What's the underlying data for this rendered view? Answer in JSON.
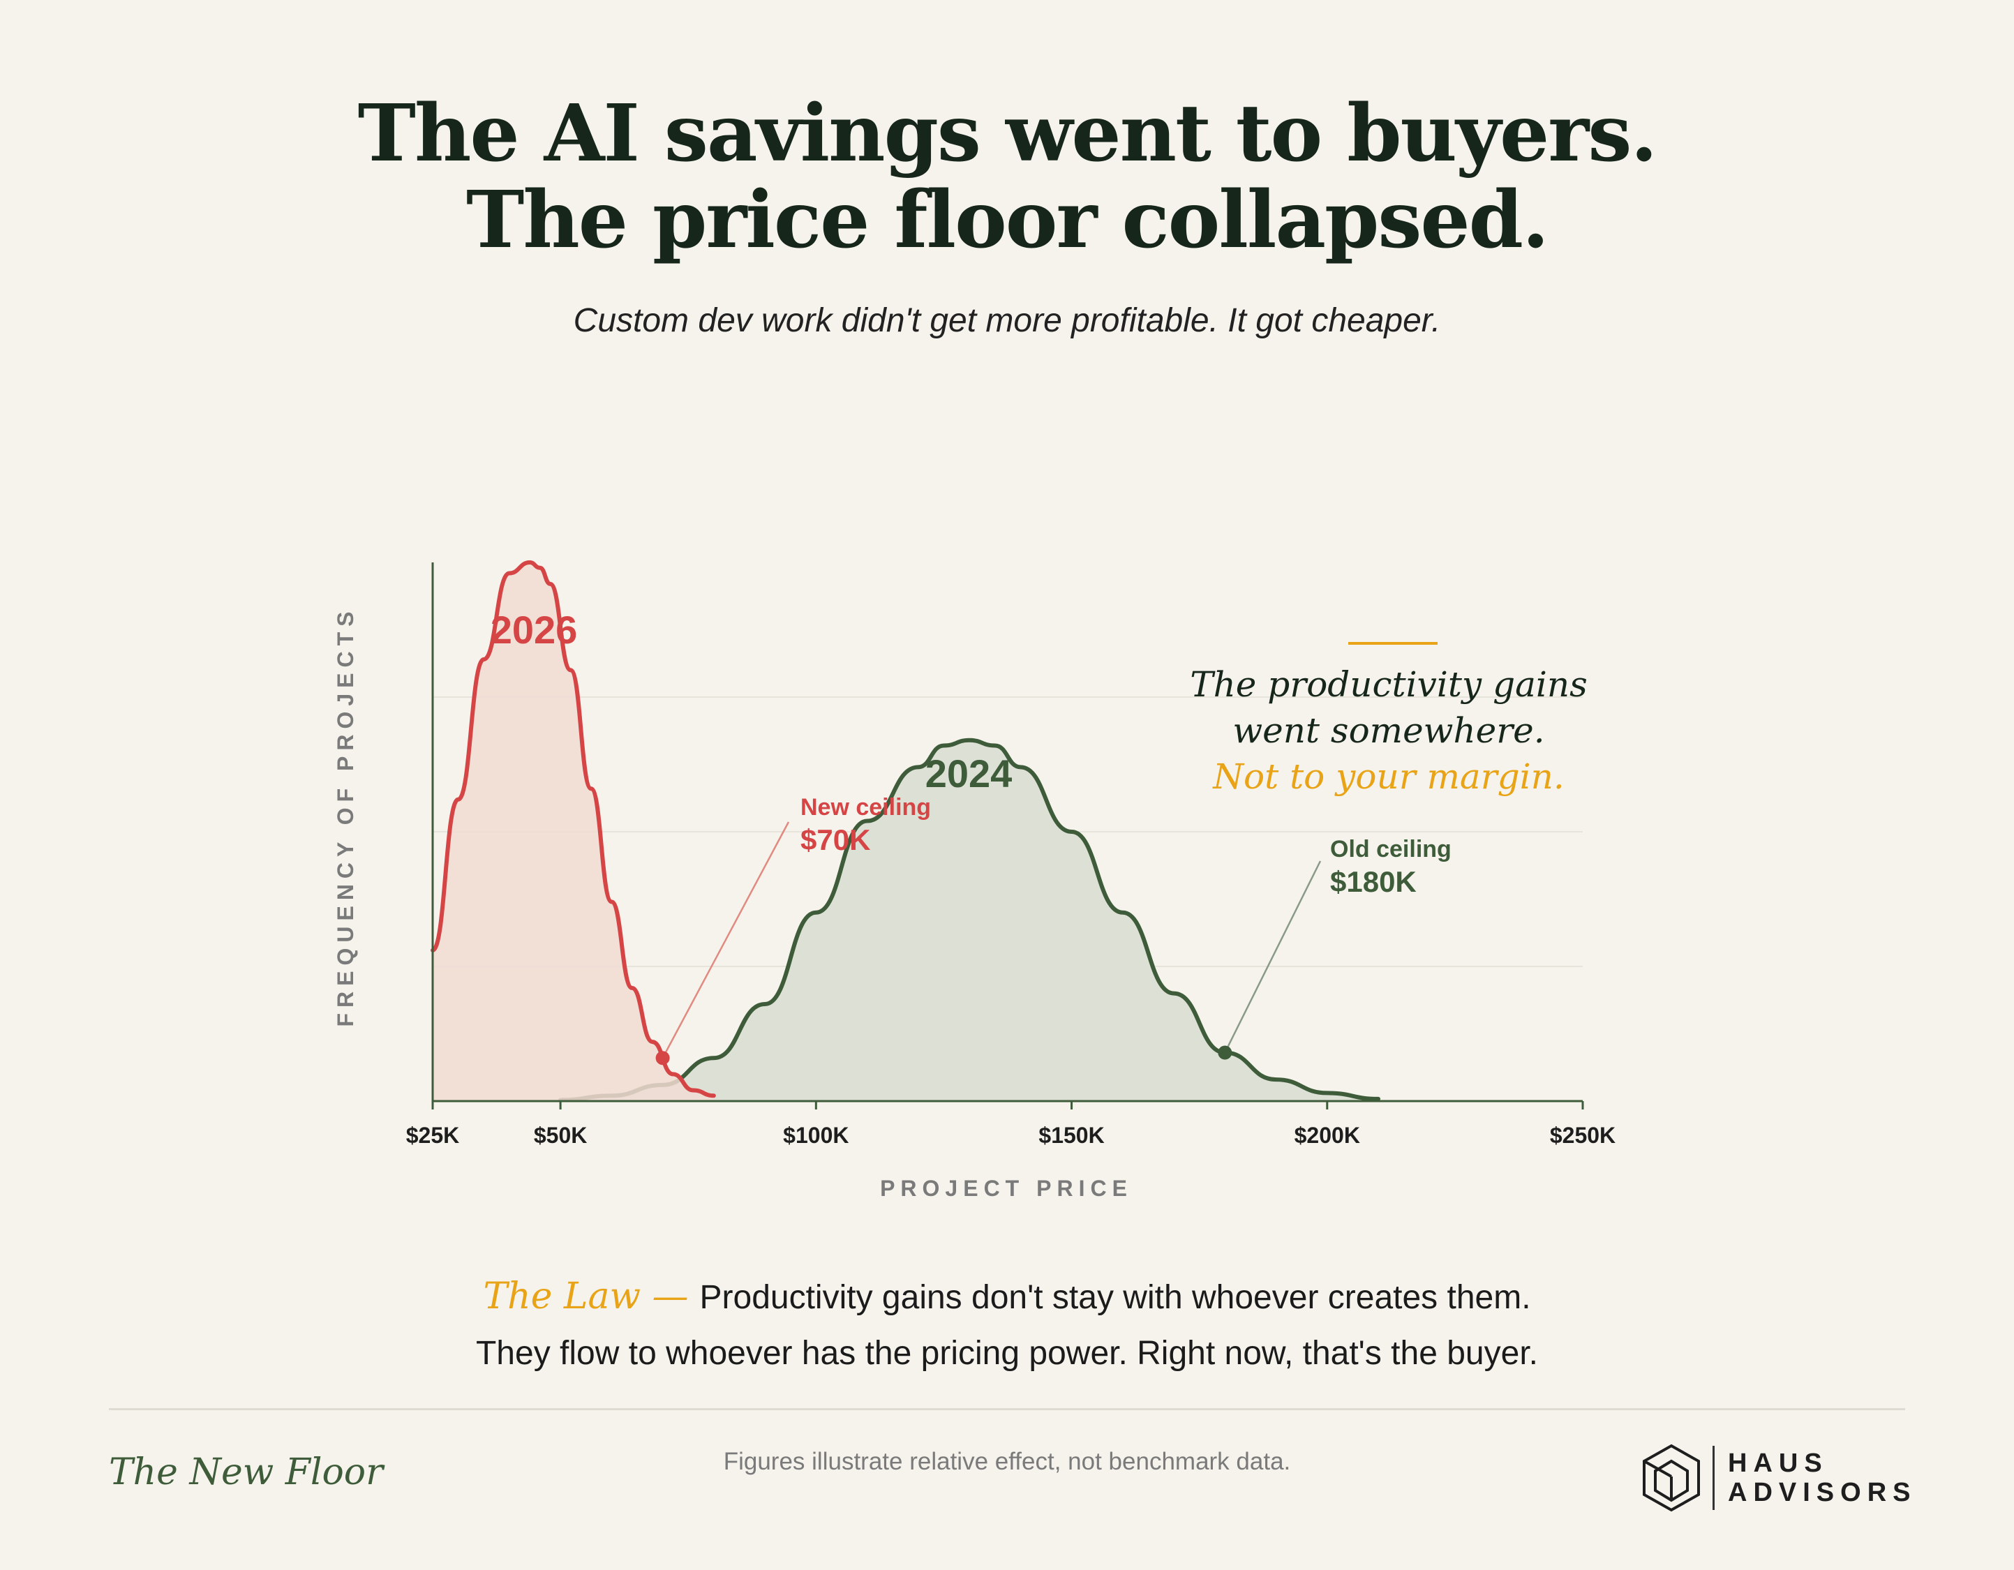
{
  "header": {
    "title_line1": "The AI savings went to buyers.",
    "title_line2": "The price floor collapsed.",
    "subtitle": "Custom dev work didn't get more profitable. It got cheaper."
  },
  "chart_data": {
    "type": "area",
    "xlabel": "PROJECT PRICE",
    "ylabel": "FREQUENCY OF PROJECTS",
    "xlim": [
      25,
      250
    ],
    "x_unit": "$K",
    "x_ticks": [
      25,
      50,
      100,
      150,
      200,
      250
    ],
    "x_tick_labels": [
      "$25K",
      "$50K",
      "$100K",
      "$150K",
      "$200K",
      "$250K"
    ],
    "grid": "horizontal",
    "series": [
      {
        "name": "2026",
        "color": "#d64545",
        "fill": "#f1dcd4",
        "x": [
          25,
          30,
          35,
          40,
          44,
          46,
          48,
          52,
          56,
          60,
          64,
          68,
          72,
          76,
          80
        ],
        "y": [
          0.28,
          0.56,
          0.82,
          0.98,
          1.0,
          0.99,
          0.96,
          0.8,
          0.58,
          0.37,
          0.21,
          0.11,
          0.05,
          0.02,
          0.01
        ]
      },
      {
        "name": "2024",
        "color": "#3e5c3a",
        "fill": "#dde1d5",
        "x": [
          50,
          60,
          70,
          80,
          90,
          100,
          110,
          120,
          125,
          130,
          135,
          140,
          150,
          160,
          170,
          180,
          190,
          200,
          210
        ],
        "y": [
          0.002,
          0.01,
          0.03,
          0.08,
          0.18,
          0.35,
          0.52,
          0.62,
          0.66,
          0.67,
          0.66,
          0.62,
          0.5,
          0.35,
          0.2,
          0.09,
          0.04,
          0.015,
          0.004
        ]
      }
    ],
    "markers": [
      {
        "label": "New ceiling",
        "value": "$70K",
        "x": 70,
        "color": "#d64545"
      },
      {
        "label": "Old ceiling",
        "value": "$180K",
        "x": 180,
        "color": "#3e5c3a"
      }
    ],
    "annotation": {
      "line1": "The productivity gains",
      "line2": "went somewhere.",
      "line3": "Not to your margin.",
      "accent": "#e8a317"
    }
  },
  "law": {
    "label": "The Law —",
    "line1": "Productivity gains don't stay with whoever creates them.",
    "line2": "They flow to whoever has the pricing power. Right now, that's the buyer."
  },
  "footer": {
    "left": "The New Floor",
    "center": "Figures illustrate relative effect, not benchmark data.",
    "logo_line1": "HAUS",
    "logo_line2": "ADVISORS",
    "logo_icon": "house-icon"
  }
}
